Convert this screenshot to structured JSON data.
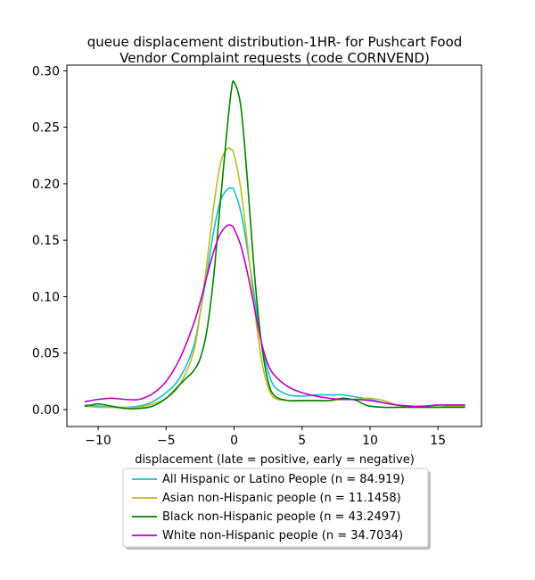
{
  "chart_data": {
    "type": "line",
    "title_line1": "queue displacement distribution-1HR-  for Pushcart Food",
    "title_line2": "Vendor Complaint  requests (code CORNVEND)",
    "xlabel": "displacement (late = positive, early = negative)",
    "ylabel": "",
    "xlim": [
      -12.3,
      18.2
    ],
    "ylim": [
      -0.015,
      0.305
    ],
    "xticks": [
      -10,
      -5,
      0,
      5,
      10,
      15
    ],
    "xtick_labels": [
      "−10",
      "−5",
      "0",
      "5",
      "10",
      "15"
    ],
    "yticks": [
      0.0,
      0.05,
      0.1,
      0.15,
      0.2,
      0.25,
      0.3
    ],
    "ytick_labels": [
      "0.00",
      "0.05",
      "0.10",
      "0.15",
      "0.20",
      "0.25",
      "0.30"
    ],
    "grid": false,
    "legend_position": "below-plot",
    "series": [
      {
        "name": "All Hispanic or Latino People (n = 84.919)",
        "color": "#17becf",
        "x": [
          -11,
          -10,
          -9,
          -8,
          -7,
          -6,
          -5,
          -4,
          -3,
          -2.5,
          -2,
          -1.5,
          -1,
          -0.5,
          -0.2,
          0,
          0.5,
          1,
          1.5,
          2,
          2.5,
          3,
          4,
          5,
          6,
          7,
          8,
          9,
          10,
          11,
          12,
          13,
          14,
          15,
          16,
          17
        ],
        "y": [
          0.004,
          0.003,
          0.002,
          0.002,
          0.003,
          0.007,
          0.015,
          0.028,
          0.055,
          0.085,
          0.12,
          0.158,
          0.185,
          0.195,
          0.196,
          0.194,
          0.175,
          0.14,
          0.1,
          0.06,
          0.034,
          0.02,
          0.013,
          0.012,
          0.013,
          0.013,
          0.013,
          0.011,
          0.009,
          0.006,
          0.004,
          0.003,
          0.003,
          0.004,
          0.004,
          0.004
        ]
      },
      {
        "name": "Asian non-Hispanic people (n = 11.1458)",
        "color": "#bcbd22",
        "x": [
          -11,
          -10,
          -9,
          -8,
          -7,
          -6,
          -5,
          -4,
          -3,
          -2.5,
          -2,
          -1.5,
          -1,
          -0.5,
          -0.2,
          0,
          0.5,
          1,
          1.5,
          2,
          2.5,
          3,
          4,
          5,
          6,
          7,
          8,
          9,
          10,
          11,
          12,
          13,
          14,
          15,
          16,
          17
        ],
        "y": [
          0.003,
          0.002,
          0.002,
          0.002,
          0.002,
          0.005,
          0.01,
          0.022,
          0.05,
          0.085,
          0.13,
          0.18,
          0.218,
          0.231,
          0.23,
          0.226,
          0.195,
          0.145,
          0.09,
          0.045,
          0.02,
          0.01,
          0.008,
          0.008,
          0.008,
          0.008,
          0.009,
          0.009,
          0.01,
          0.008,
          0.004,
          0.002,
          0.002,
          0.002,
          0.003,
          0.003
        ]
      },
      {
        "name": "Black non-Hispanic people (n = 43.2497)",
        "color": "#008000",
        "x": [
          -11,
          -10.5,
          -10,
          -9,
          -8,
          -7,
          -6,
          -5,
          -4,
          -3.5,
          -3,
          -2.5,
          -2,
          -1.5,
          -1,
          -0.5,
          -0.2,
          0,
          0.5,
          1,
          1.5,
          2,
          2.5,
          3,
          4,
          5,
          6,
          7,
          8,
          9,
          9.5,
          10,
          11,
          12,
          13,
          14,
          15,
          16,
          17
        ],
        "y": [
          0.003,
          0.004,
          0.005,
          0.003,
          0.001,
          0.001,
          0.003,
          0.01,
          0.022,
          0.028,
          0.034,
          0.045,
          0.07,
          0.118,
          0.185,
          0.25,
          0.283,
          0.29,
          0.268,
          0.2,
          0.12,
          0.06,
          0.025,
          0.012,
          0.008,
          0.008,
          0.008,
          0.008,
          0.01,
          0.008,
          0.005,
          0.003,
          0.002,
          0.002,
          0.002,
          0.002,
          0.002,
          0.002,
          0.002
        ]
      },
      {
        "name": "White non-Hispanic people (n = 34.7034)",
        "color": "#bf00bf",
        "x": [
          -11,
          -10,
          -9,
          -8,
          -7,
          -6,
          -5,
          -4,
          -3,
          -2.5,
          -2,
          -1.5,
          -1,
          -0.5,
          -0.2,
          0,
          0.5,
          1,
          1.5,
          2,
          2.5,
          3,
          4,
          5,
          6,
          7,
          8,
          9,
          10,
          11,
          12,
          13,
          14,
          15,
          16,
          17
        ],
        "y": [
          0.007,
          0.009,
          0.01,
          0.009,
          0.009,
          0.014,
          0.025,
          0.045,
          0.075,
          0.095,
          0.118,
          0.14,
          0.156,
          0.163,
          0.163,
          0.16,
          0.145,
          0.12,
          0.09,
          0.06,
          0.04,
          0.03,
          0.02,
          0.015,
          0.012,
          0.01,
          0.009,
          0.009,
          0.008,
          0.006,
          0.004,
          0.003,
          0.003,
          0.004,
          0.004,
          0.004
        ]
      }
    ]
  }
}
